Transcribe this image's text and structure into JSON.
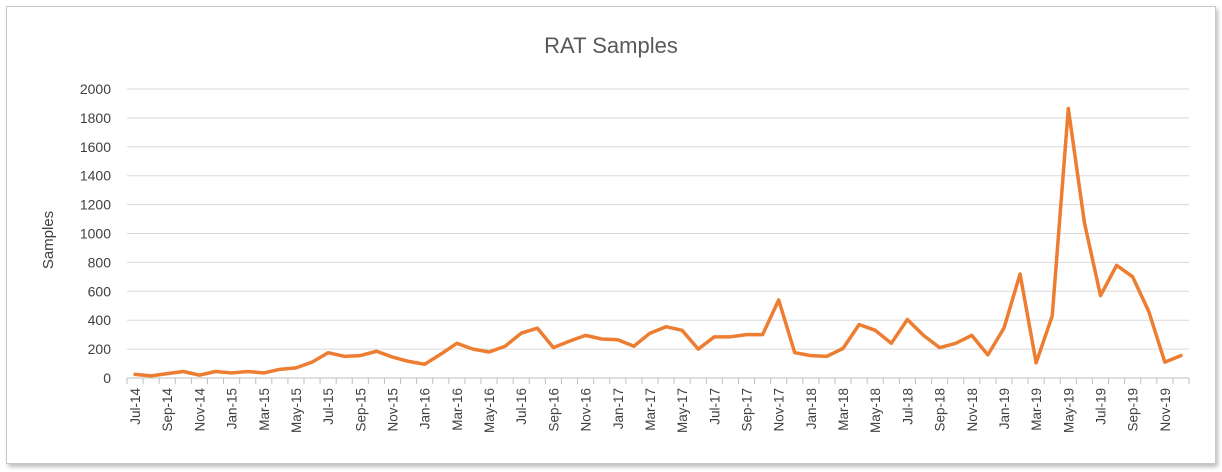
{
  "chart_data": {
    "type": "line",
    "title": "RAT Samples",
    "xlabel": "",
    "ylabel": "Samples",
    "ylim": [
      0,
      2000
    ],
    "yticks": [
      0,
      200,
      400,
      600,
      800,
      1000,
      1200,
      1400,
      1600,
      1800,
      2000
    ],
    "grid": true,
    "line_color": "#ED7D31",
    "categories": [
      "Jul-14",
      "Aug-14",
      "Sep-14",
      "Oct-14",
      "Nov-14",
      "Dec-14",
      "Jan-15",
      "Feb-15",
      "Mar-15",
      "Apr-15",
      "May-15",
      "Jun-15",
      "Jul-15",
      "Aug-15",
      "Sep-15",
      "Oct-15",
      "Nov-15",
      "Dec-15",
      "Jan-16",
      "Feb-16",
      "Mar-16",
      "Apr-16",
      "May-16",
      "Jun-16",
      "Jul-16",
      "Aug-16",
      "Sep-16",
      "Oct-16",
      "Nov-16",
      "Dec-16",
      "Jan-17",
      "Feb-17",
      "Mar-17",
      "Apr-17",
      "May-17",
      "Jun-17",
      "Jul-17",
      "Aug-17",
      "Sep-17",
      "Oct-17",
      "Nov-17",
      "Dec-17",
      "Jan-18",
      "Feb-18",
      "Mar-18",
      "Apr-18",
      "May-18",
      "Jun-18",
      "Jul-18",
      "Aug-18",
      "Sep-18",
      "Oct-18",
      "Nov-18",
      "Dec-18",
      "Jan-19",
      "Feb-19",
      "Mar-19",
      "Apr-19",
      "May-19",
      "Jun-19",
      "Jul-19",
      "Aug-19",
      "Sep-19",
      "Oct-19",
      "Nov-19",
      "Dec-19"
    ],
    "tick_labels": [
      "Jul-14",
      "Sep-14",
      "Nov-14",
      "Jan-15",
      "Mar-15",
      "May-15",
      "Jul-15",
      "Sep-15",
      "Nov-15",
      "Jan-16",
      "Mar-16",
      "May-16",
      "Jul-16",
      "Sep-16",
      "Nov-16",
      "Jan-17",
      "Mar-17",
      "May-17",
      "Jul-17",
      "Sep-17",
      "Nov-17",
      "Jan-18",
      "Mar-18",
      "May-18",
      "Jul-18",
      "Sep-18",
      "Nov-18",
      "Jan-19",
      "Mar-19",
      "May-19",
      "Jul-19",
      "Sep-19",
      "Nov-19"
    ],
    "series": [
      {
        "name": "RAT Samples",
        "values": [
          25,
          15,
          30,
          45,
          20,
          45,
          35,
          45,
          35,
          60,
          70,
          110,
          175,
          150,
          155,
          185,
          145,
          115,
          95,
          165,
          240,
          200,
          180,
          220,
          310,
          345,
          210,
          255,
          295,
          270,
          265,
          220,
          310,
          355,
          330,
          200,
          285,
          285,
          300,
          300,
          540,
          175,
          155,
          150,
          205,
          370,
          330,
          240,
          405,
          295,
          210,
          240,
          295,
          160,
          345,
          720,
          105,
          430,
          1865,
          1075,
          570,
          780,
          700,
          460,
          110,
          155
        ]
      }
    ]
  }
}
